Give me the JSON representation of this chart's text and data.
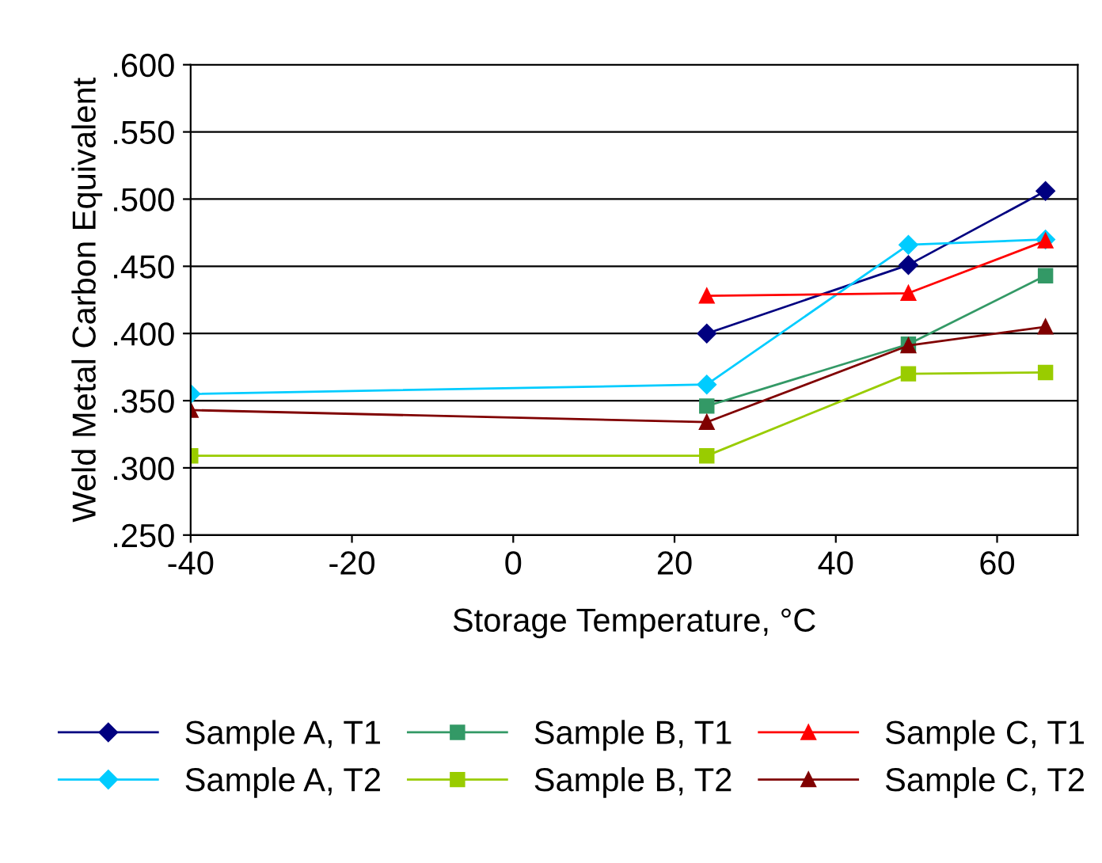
{
  "chart_data": {
    "type": "line",
    "xlabel": "Storage Temperature, °C",
    "ylabel": "Weld Metal Carbon Equivalent",
    "xlim": [
      -40,
      70
    ],
    "xticks": [
      -40,
      -20,
      0,
      20,
      40,
      60
    ],
    "ylim": [
      0.25,
      0.6
    ],
    "yticks": [
      {
        "value": 0.25,
        "label": ".250"
      },
      {
        "value": 0.3,
        "label": ".300"
      },
      {
        "value": 0.35,
        "label": ".350"
      },
      {
        "value": 0.4,
        "label": ".400"
      },
      {
        "value": 0.45,
        "label": ".450"
      },
      {
        "value": 0.5,
        "label": ".500"
      },
      {
        "value": 0.55,
        "label": ".550"
      },
      {
        "value": 0.6,
        "label": ".600"
      }
    ],
    "grid": "y",
    "legend": "bottom",
    "line_style": "solid",
    "series": [
      {
        "name": "Sample A, T1",
        "color": "#000080",
        "marker": "diamond",
        "x": [
          24,
          49,
          66
        ],
        "values": [
          0.4,
          0.451,
          0.506
        ]
      },
      {
        "name": "Sample A, T2",
        "color": "#00ccff",
        "marker": "diamond",
        "x": [
          -40,
          24,
          49,
          66
        ],
        "values": [
          0.355,
          0.362,
          0.466,
          0.47
        ]
      },
      {
        "name": "Sample B, T1",
        "color": "#339966",
        "marker": "square",
        "x": [
          24,
          49,
          66
        ],
        "values": [
          0.346,
          0.392,
          0.443
        ]
      },
      {
        "name": "Sample B, T2",
        "color": "#99cc00",
        "marker": "square",
        "x": [
          -40,
          24,
          49,
          66
        ],
        "values": [
          0.309,
          0.309,
          0.37,
          0.371
        ]
      },
      {
        "name": "Sample C, T1",
        "color": "#ff0000",
        "marker": "triangle",
        "x": [
          24,
          49,
          66
        ],
        "values": [
          0.428,
          0.43,
          0.469
        ]
      },
      {
        "name": "Sample C, T2",
        "color": "#800000",
        "marker": "triangle",
        "x": [
          -40,
          24,
          49,
          66
        ],
        "values": [
          0.343,
          0.334,
          0.391,
          0.405
        ]
      }
    ]
  }
}
